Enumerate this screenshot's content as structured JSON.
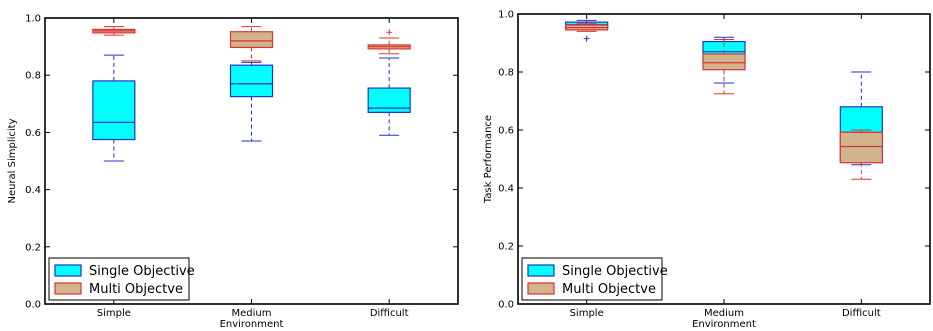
{
  "chart_data": [
    {
      "type": "box",
      "ylabel": "Neural Simplicity",
      "xlabel": "Environment",
      "categories": [
        "Simple",
        "Medium",
        "Difficult"
      ],
      "ylim": [
        0.0,
        1.0
      ],
      "yticks": [
        "0.0",
        "0.2",
        "0.4",
        "0.6",
        "0.8",
        "1.0"
      ],
      "legend_position": "bottom-left",
      "series": [
        {
          "name": "Single Objective",
          "fill": "#00ffff",
          "edge": "#2233cc",
          "boxes": [
            {
              "whisker_low": 0.5,
              "q1": 0.575,
              "median": 0.635,
              "q3": 0.78,
              "whisker_high": 0.87,
              "outliers": []
            },
            {
              "whisker_low": 0.57,
              "q1": 0.725,
              "median": 0.77,
              "q3": 0.835,
              "whisker_high": 0.845,
              "outliers": []
            },
            {
              "whisker_low": 0.59,
              "q1": 0.67,
              "median": 0.685,
              "q3": 0.755,
              "whisker_high": 0.86,
              "outliers": []
            }
          ]
        },
        {
          "name": "Multi Objectve",
          "fill": "#d2b48c",
          "edge": "#dd3333",
          "boxes": [
            {
              "whisker_low": 0.94,
              "q1": 0.948,
              "median": 0.955,
              "q3": 0.96,
              "whisker_high": 0.97,
              "outliers": []
            },
            {
              "whisker_low": 0.85,
              "q1": 0.897,
              "median": 0.92,
              "q3": 0.952,
              "whisker_high": 0.97,
              "outliers": []
            },
            {
              "whisker_low": 0.875,
              "q1": 0.892,
              "median": 0.9,
              "q3": 0.906,
              "whisker_high": 0.93,
              "outliers": [
                0.95
              ]
            }
          ]
        }
      ]
    },
    {
      "type": "box",
      "ylabel": "Task Performance",
      "xlabel": "Environment",
      "categories": [
        "Simple",
        "Medium",
        "Difficult"
      ],
      "ylim": [
        0.0,
        1.0
      ],
      "yticks": [
        "0.0",
        "0.2",
        "0.4",
        "0.6",
        "0.8",
        "1.0"
      ],
      "legend_position": "bottom-left",
      "series": [
        {
          "name": "Single Objective",
          "fill": "#00ffff",
          "edge": "#2233cc",
          "boxes": [
            {
              "whisker_low": 0.945,
              "q1": 0.952,
              "median": 0.963,
              "q3": 0.972,
              "whisker_high": 0.978,
              "outliers": [
                0.915
              ]
            },
            {
              "whisker_low": 0.762,
              "q1": 0.83,
              "median": 0.87,
              "q3": 0.905,
              "whisker_high": 0.92,
              "outliers": []
            },
            {
              "whisker_low": 0.48,
              "q1": 0.49,
              "median": 0.592,
              "q3": 0.68,
              "whisker_high": 0.8,
              "outliers": []
            }
          ]
        },
        {
          "name": "Multi Objectve",
          "fill": "#d2b48c",
          "edge": "#dd3333",
          "boxes": [
            {
              "whisker_low": 0.94,
              "q1": 0.945,
              "median": 0.953,
              "q3": 0.962,
              "whisker_high": 0.968,
              "outliers": []
            },
            {
              "whisker_low": 0.725,
              "q1": 0.808,
              "median": 0.832,
              "q3": 0.862,
              "whisker_high": 0.912,
              "outliers": []
            },
            {
              "whisker_low": 0.43,
              "q1": 0.487,
              "median": 0.543,
              "q3": 0.592,
              "whisker_high": 0.6,
              "outliers": []
            }
          ]
        }
      ]
    }
  ]
}
